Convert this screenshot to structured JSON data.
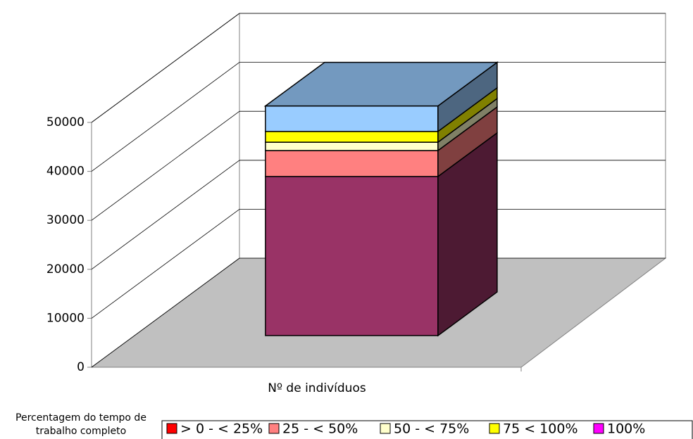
{
  "chart_data": {
    "type": "bar3d_stacked",
    "categories": [
      "Nº de indivíduos"
    ],
    "series": [
      {
        "name": "> 0 - < 25%",
        "color": "#993366",
        "legend_color": "#ff0000",
        "values": [
          32500
        ]
      },
      {
        "name": "25 - < 50%",
        "color": "#ff8080",
        "legend_color": "#ff8080",
        "values": [
          5300
        ]
      },
      {
        "name": "50 - < 75%",
        "color": "#ffffcc",
        "legend_color": "#ffffcc",
        "values": [
          1700
        ]
      },
      {
        "name": "75 < 100%",
        "color": "#ffff00",
        "legend_color": "#ffff00",
        "values": [
          2200
        ]
      },
      {
        "name": "100%",
        "color": "#99ccff",
        "legend_color": "#ff00ff",
        "values": [
          5200
        ]
      }
    ],
    "ylim": [
      0,
      50000
    ],
    "yticks": [
      0,
      10000,
      20000,
      30000,
      40000,
      50000
    ],
    "grid": true,
    "legend_title": [
      "Percentagem do  tempo de",
      "trabalho completo"
    ],
    "legend": "bottom"
  }
}
